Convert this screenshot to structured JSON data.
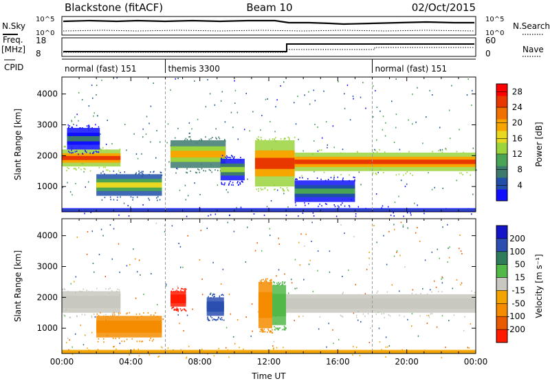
{
  "header": {
    "station": "Blackstone (fitACF)",
    "beam": "Beam 10",
    "date": "02/Oct/2015"
  },
  "summary": {
    "nsky_label": "N.Sky",
    "nsearch_label": "N.Search",
    "noise_ticks": [
      "10^5",
      "10^0"
    ],
    "freq_label": "Freq.",
    "freq_unit": "[MHz]",
    "freq_ticks": [
      "18",
      "8"
    ],
    "nave_label": "Nave",
    "nave_ticks": [
      "60",
      "0"
    ],
    "cpid_label": "CPID",
    "cpid_modes": [
      {
        "name": "normal (fast) 151",
        "start_h": 0,
        "end_h": 6
      },
      {
        "name": "themis 3300",
        "start_h": 6,
        "end_h": 18
      },
      {
        "name": "normal (fast) 151",
        "start_h": 18,
        "end_h": 24
      }
    ]
  },
  "colors": {
    "power": [
      "#1010ff",
      "#1f4fa8",
      "#3d7a6e",
      "#4aa456",
      "#9bd43c",
      "#e8d820",
      "#f7a600",
      "#f07000",
      "#e83800",
      "#ff0000"
    ],
    "velocity": [
      "#1414c8",
      "#2a4fb0",
      "#2f7c5a",
      "#52b848",
      "#c8c8c0",
      "#f3a400",
      "#f58c00",
      "#ea5a00",
      "#ff1a00"
    ]
  },
  "chart_data": [
    {
      "type": "heatmap",
      "panel": "power",
      "xlabel": "Time UT",
      "ylabel": "Slant Range [km]",
      "xlim": [
        0,
        24
      ],
      "ylim": [
        180,
        4550
      ],
      "x_ticks": [
        "00:00",
        "04:00",
        "08:00",
        "12:00",
        "16:00",
        "20:00",
        "00:00"
      ],
      "y_ticks": [
        1000,
        2000,
        3000,
        4000
      ],
      "colorbar_label": "Power [dB]",
      "colorbar_ticks": [
        4,
        8,
        12,
        16,
        20,
        24,
        28
      ],
      "colorbar_range": [
        0,
        30
      ],
      "echo_bands": [
        {
          "t_start": 0.0,
          "t_end": 3.4,
          "range_start_km": 1650,
          "range_end_km": 2200,
          "peak_db": 26
        },
        {
          "t_start": 0.3,
          "t_end": 2.2,
          "range_start_km": 2200,
          "range_end_km": 2900,
          "peak_db": 8
        },
        {
          "t_start": 2.0,
          "t_end": 5.8,
          "range_start_km": 700,
          "range_end_km": 1400,
          "peak_db": 16
        },
        {
          "t_start": 6.3,
          "t_end": 9.5,
          "range_start_km": 1600,
          "range_end_km": 2500,
          "peak_db": 18
        },
        {
          "t_start": 9.2,
          "t_end": 10.6,
          "range_start_km": 1200,
          "range_end_km": 1900,
          "peak_db": 12
        },
        {
          "t_start": 11.2,
          "t_end": 13.5,
          "range_start_km": 1000,
          "range_end_km": 2500,
          "peak_db": 26
        },
        {
          "t_start": 13.5,
          "t_end": 24.0,
          "range_start_km": 1500,
          "range_end_km": 2100,
          "peak_db": 24
        },
        {
          "t_start": 13.5,
          "t_end": 17.0,
          "range_start_km": 500,
          "range_end_km": 1200,
          "peak_db": 10
        },
        {
          "t_start": 0.0,
          "t_end": 24.0,
          "range_start_km": 180,
          "range_end_km": 300,
          "peak_db": 8
        }
      ]
    },
    {
      "type": "heatmap",
      "panel": "velocity",
      "xlabel": "Time UT",
      "ylabel": "Slant Range [km]",
      "xlim": [
        0,
        24
      ],
      "ylim": [
        180,
        4550
      ],
      "x_ticks": [
        "00:00",
        "04:00",
        "08:00",
        "12:00",
        "16:00",
        "20:00",
        "00:00"
      ],
      "y_ticks": [
        1000,
        2000,
        3000,
        4000
      ],
      "colorbar_label": "Velocity [m s⁻¹]",
      "colorbar_ticks": [
        200,
        100,
        50,
        15,
        -15,
        -50,
        -100,
        -200
      ],
      "colorbar_range": [
        -250,
        250
      ],
      "echo_bands": [
        {
          "t_start": 0.0,
          "t_end": 3.4,
          "range_start_km": 1500,
          "range_end_km": 2200,
          "velocity_ms": 0
        },
        {
          "t_start": 2.0,
          "t_end": 5.8,
          "range_start_km": 700,
          "range_end_km": 1400,
          "velocity_ms": -80
        },
        {
          "t_start": 6.3,
          "t_end": 7.2,
          "range_start_km": 1700,
          "range_end_km": 2200,
          "velocity_ms": -220
        },
        {
          "t_start": 8.4,
          "t_end": 9.4,
          "range_start_km": 1400,
          "range_end_km": 2000,
          "velocity_ms": 150
        },
        {
          "t_start": 11.4,
          "t_end": 12.2,
          "range_start_km": 1000,
          "range_end_km": 2500,
          "velocity_ms": -80
        },
        {
          "t_start": 12.2,
          "t_end": 13.0,
          "range_start_km": 1100,
          "range_end_km": 2400,
          "velocity_ms": 40
        },
        {
          "t_start": 13.0,
          "t_end": 24.0,
          "range_start_km": 1500,
          "range_end_km": 2100,
          "velocity_ms": 0
        },
        {
          "t_start": 0.0,
          "t_end": 24.0,
          "range_start_km": 180,
          "range_end_km": 300,
          "velocity_ms": -40
        }
      ]
    }
  ]
}
